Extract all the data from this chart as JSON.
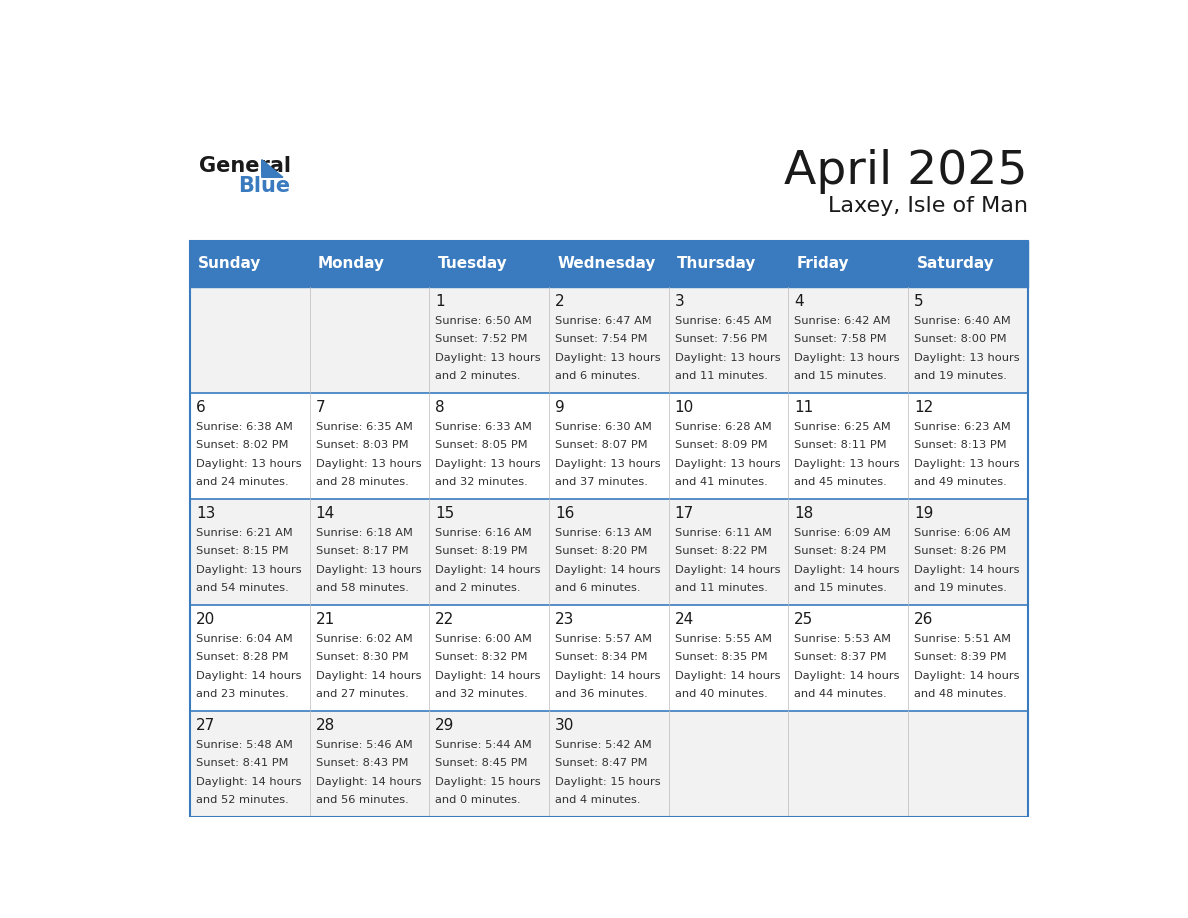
{
  "title": "April 2025",
  "subtitle": "Laxey, Isle of Man",
  "days_of_week": [
    "Sunday",
    "Monday",
    "Tuesday",
    "Wednesday",
    "Thursday",
    "Friday",
    "Saturday"
  ],
  "header_bg": "#3a7bbf",
  "header_text": "#ffffff",
  "row_bg_odd": "#f2f2f2",
  "row_bg_even": "#ffffff",
  "cell_border": "#cccccc",
  "title_color": "#1a1a1a",
  "subtitle_color": "#1a1a1a",
  "text_color": "#333333",
  "day_num_color": "#1a1a1a",
  "weeks": [
    {
      "days": [
        {
          "date": null,
          "sunrise": null,
          "sunset": null,
          "daylight": null
        },
        {
          "date": null,
          "sunrise": null,
          "sunset": null,
          "daylight": null
        },
        {
          "date": "1",
          "sunrise": "6:50 AM",
          "sunset": "7:52 PM",
          "daylight": "13 hours\nand 2 minutes."
        },
        {
          "date": "2",
          "sunrise": "6:47 AM",
          "sunset": "7:54 PM",
          "daylight": "13 hours\nand 6 minutes."
        },
        {
          "date": "3",
          "sunrise": "6:45 AM",
          "sunset": "7:56 PM",
          "daylight": "13 hours\nand 11 minutes."
        },
        {
          "date": "4",
          "sunrise": "6:42 AM",
          "sunset": "7:58 PM",
          "daylight": "13 hours\nand 15 minutes."
        },
        {
          "date": "5",
          "sunrise": "6:40 AM",
          "sunset": "8:00 PM",
          "daylight": "13 hours\nand 19 minutes."
        }
      ]
    },
    {
      "days": [
        {
          "date": "6",
          "sunrise": "6:38 AM",
          "sunset": "8:02 PM",
          "daylight": "13 hours\nand 24 minutes."
        },
        {
          "date": "7",
          "sunrise": "6:35 AM",
          "sunset": "8:03 PM",
          "daylight": "13 hours\nand 28 minutes."
        },
        {
          "date": "8",
          "sunrise": "6:33 AM",
          "sunset": "8:05 PM",
          "daylight": "13 hours\nand 32 minutes."
        },
        {
          "date": "9",
          "sunrise": "6:30 AM",
          "sunset": "8:07 PM",
          "daylight": "13 hours\nand 37 minutes."
        },
        {
          "date": "10",
          "sunrise": "6:28 AM",
          "sunset": "8:09 PM",
          "daylight": "13 hours\nand 41 minutes."
        },
        {
          "date": "11",
          "sunrise": "6:25 AM",
          "sunset": "8:11 PM",
          "daylight": "13 hours\nand 45 minutes."
        },
        {
          "date": "12",
          "sunrise": "6:23 AM",
          "sunset": "8:13 PM",
          "daylight": "13 hours\nand 49 minutes."
        }
      ]
    },
    {
      "days": [
        {
          "date": "13",
          "sunrise": "6:21 AM",
          "sunset": "8:15 PM",
          "daylight": "13 hours\nand 54 minutes."
        },
        {
          "date": "14",
          "sunrise": "6:18 AM",
          "sunset": "8:17 PM",
          "daylight": "13 hours\nand 58 minutes."
        },
        {
          "date": "15",
          "sunrise": "6:16 AM",
          "sunset": "8:19 PM",
          "daylight": "14 hours\nand 2 minutes."
        },
        {
          "date": "16",
          "sunrise": "6:13 AM",
          "sunset": "8:20 PM",
          "daylight": "14 hours\nand 6 minutes."
        },
        {
          "date": "17",
          "sunrise": "6:11 AM",
          "sunset": "8:22 PM",
          "daylight": "14 hours\nand 11 minutes."
        },
        {
          "date": "18",
          "sunrise": "6:09 AM",
          "sunset": "8:24 PM",
          "daylight": "14 hours\nand 15 minutes."
        },
        {
          "date": "19",
          "sunrise": "6:06 AM",
          "sunset": "8:26 PM",
          "daylight": "14 hours\nand 19 minutes."
        }
      ]
    },
    {
      "days": [
        {
          "date": "20",
          "sunrise": "6:04 AM",
          "sunset": "8:28 PM",
          "daylight": "14 hours\nand 23 minutes."
        },
        {
          "date": "21",
          "sunrise": "6:02 AM",
          "sunset": "8:30 PM",
          "daylight": "14 hours\nand 27 minutes."
        },
        {
          "date": "22",
          "sunrise": "6:00 AM",
          "sunset": "8:32 PM",
          "daylight": "14 hours\nand 32 minutes."
        },
        {
          "date": "23",
          "sunrise": "5:57 AM",
          "sunset": "8:34 PM",
          "daylight": "14 hours\nand 36 minutes."
        },
        {
          "date": "24",
          "sunrise": "5:55 AM",
          "sunset": "8:35 PM",
          "daylight": "14 hours\nand 40 minutes."
        },
        {
          "date": "25",
          "sunrise": "5:53 AM",
          "sunset": "8:37 PM",
          "daylight": "14 hours\nand 44 minutes."
        },
        {
          "date": "26",
          "sunrise": "5:51 AM",
          "sunset": "8:39 PM",
          "daylight": "14 hours\nand 48 minutes."
        }
      ]
    },
    {
      "days": [
        {
          "date": "27",
          "sunrise": "5:48 AM",
          "sunset": "8:41 PM",
          "daylight": "14 hours\nand 52 minutes."
        },
        {
          "date": "28",
          "sunrise": "5:46 AM",
          "sunset": "8:43 PM",
          "daylight": "14 hours\nand 56 minutes."
        },
        {
          "date": "29",
          "sunrise": "5:44 AM",
          "sunset": "8:45 PM",
          "daylight": "15 hours\nand 0 minutes."
        },
        {
          "date": "30",
          "sunrise": "5:42 AM",
          "sunset": "8:47 PM",
          "daylight": "15 hours\nand 4 minutes."
        },
        {
          "date": null,
          "sunrise": null,
          "sunset": null,
          "daylight": null
        },
        {
          "date": null,
          "sunrise": null,
          "sunset": null,
          "daylight": null
        },
        {
          "date": null,
          "sunrise": null,
          "sunset": null,
          "daylight": null
        }
      ]
    }
  ]
}
